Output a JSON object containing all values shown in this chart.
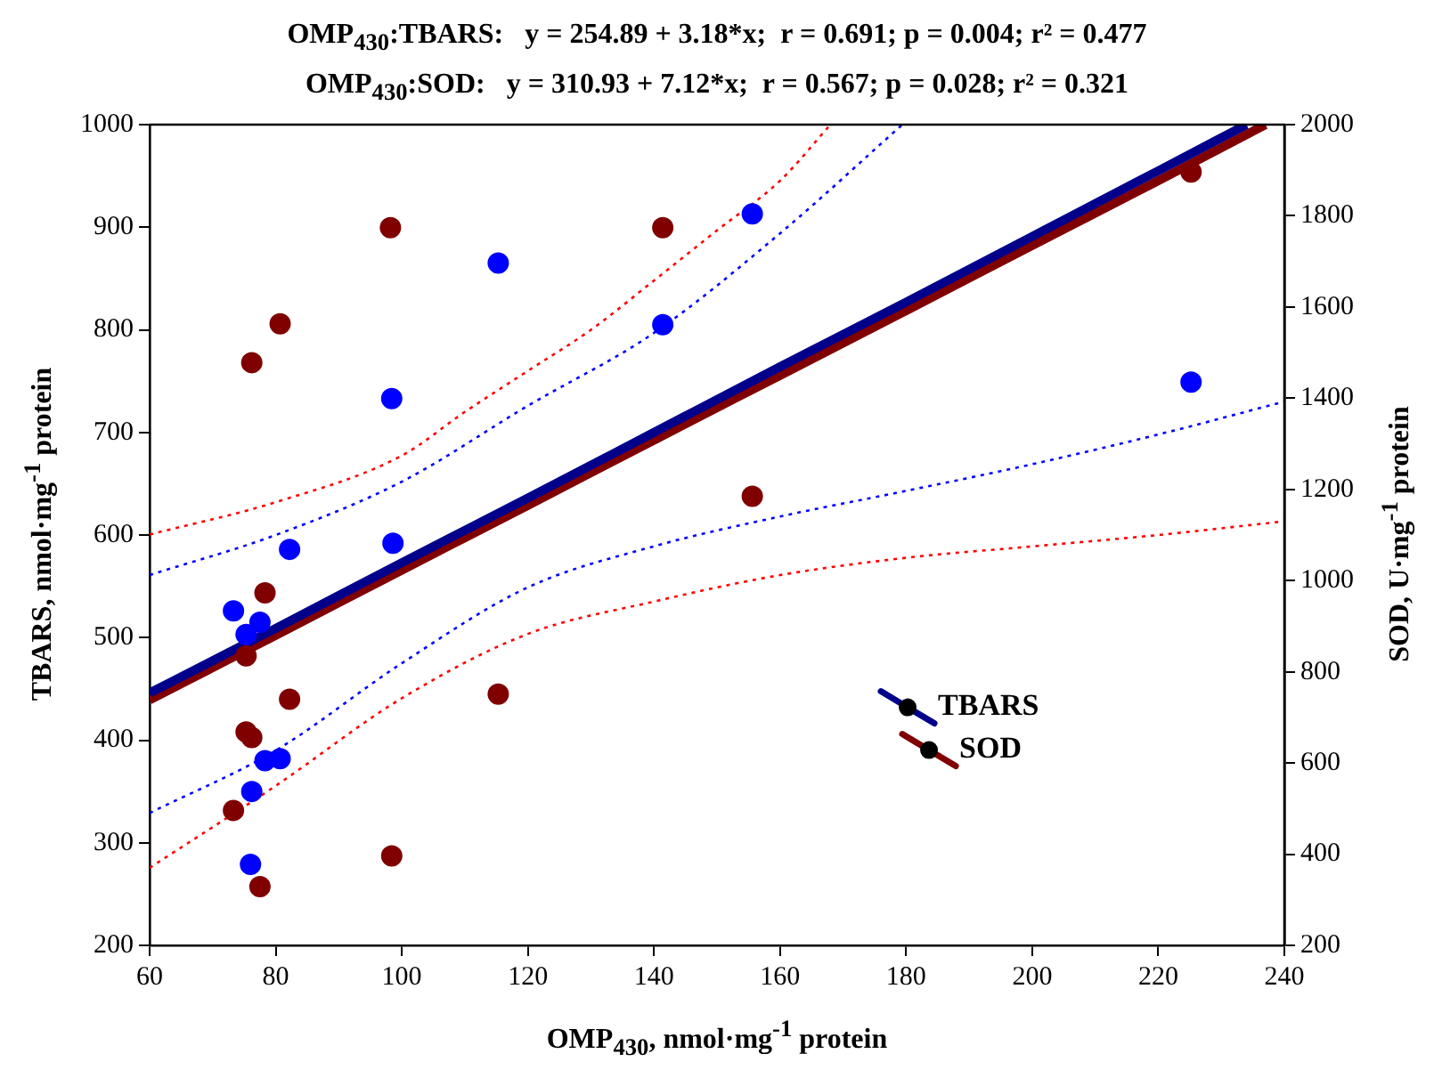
{
  "chart_data": {
    "type": "scatter",
    "title": "OMP$_{430}$:TBARS:   y = 254.89 + 3.18*x;  r = 0.691; p = 0.004; r² = 0.477",
    "subtitle": "OMP$_{430}$:SOD:   y = 310.93 + 7.12*x;  r = 0.567; p = 0.028; r² = 0.321",
    "xlabel": "OMP$_{430}$, nmol·mg$^{-1}$ protein",
    "ylabel": "TBARS, nmol·mg$^{-1}$ protein",
    "y2label": "SOD, U·mg$^{-1}$ protein",
    "xlim": [
      60,
      240
    ],
    "xticks": [
      60,
      80,
      100,
      120,
      140,
      160,
      180,
      200,
      220,
      240
    ],
    "ylim": [
      200,
      1000
    ],
    "yticks": [
      200,
      300,
      400,
      500,
      600,
      700,
      800,
      900,
      1000
    ],
    "y2lim": [
      200,
      2000
    ],
    "y2ticks": [
      200,
      400,
      600,
      800,
      1000,
      1200,
      1400,
      1600,
      1800,
      2000
    ],
    "grid": false,
    "legend": "bottom right",
    "marker": "circle",
    "series": [
      {
        "type": "scatter",
        "color": "#0000ff",
        "x": [
          73.3,
          75.3,
          77.5,
          82.2,
          98.4,
          98.6,
          78.3,
          80.7,
          76.2,
          76.0,
          115.3,
          155.6,
          141.4,
          225.2
        ],
        "values": [
          526,
          503,
          515,
          586,
          733,
          592,
          380,
          382,
          350,
          279,
          865,
          913,
          805,
          749
        ]
      },
      {
        "type": "scatter",
        "color": "#800000",
        "axis": "y2",
        "x": [
          98.2,
          80.7,
          76.2,
          78.3,
          75.3,
          82.2,
          75.3,
          76.2,
          73.3,
          98.4,
          77.5,
          115.3,
          141.4,
          155.6,
          225.2
        ],
        "values": [
          1774,
          1563,
          1478,
          973,
          835,
          740,
          668,
          656,
          496,
          396,
          329,
          751,
          1774,
          1185,
          1896
        ]
      },
      {
        "type": "line",
        "name": "TBARS",
        "color": "#00008b",
        "marker": "none",
        "x": [
          60,
          80,
          100,
          120,
          140,
          160,
          180,
          200,
          220,
          234
        ],
        "values": [
          446,
          509,
          573,
          636,
          700,
          764,
          827,
          891,
          955,
          1000
        ]
      },
      {
        "type": "line",
        "name": "SOD",
        "color": "#800000",
        "marker": "none",
        "axis": "y2",
        "x": [
          60,
          80,
          100,
          120,
          140,
          160,
          180,
          200,
          220,
          237
        ],
        "values": [
          738,
          880,
          1023,
          1165,
          1308,
          1450,
          1592,
          1735,
          1877,
          2000
        ]
      },
      {
        "type": "line",
        "color": "#0000ff",
        "line_style": "dotted",
        "marker": "none",
        "x": [
          60,
          80,
          100,
          120,
          140,
          160,
          180,
          200,
          220,
          240
        ],
        "values": [
          329,
          390,
          475,
          549,
          589,
          618,
          643,
          669,
          698,
          730
        ]
      },
      {
        "type": "line",
        "color": "#0000ff",
        "line_style": "dotted",
        "marker": "none",
        "x": [
          60,
          80,
          100,
          120,
          140,
          160,
          179.4
        ],
        "values": [
          561,
          600,
          652,
          726,
          797,
          894,
          1000
        ]
      },
      {
        "type": "line",
        "color": "#ff0000",
        "line_style": "dotted",
        "marker": "none",
        "axis": "y2",
        "x": [
          60,
          80,
          100,
          120,
          140,
          160,
          180,
          200,
          220,
          240
        ],
        "values": [
          370,
          550,
          742,
          883,
          954,
          1012,
          1050,
          1075,
          1100,
          1130
        ]
      },
      {
        "type": "line",
        "color": "#ff0000",
        "line_style": "dotted",
        "marker": "none",
        "axis": "y2",
        "x": [
          60,
          80,
          100,
          110,
          120,
          130,
          140,
          150,
          160,
          168
        ],
        "values": [
          1101,
          1172,
          1274,
          1370,
          1460,
          1550,
          1658,
          1768,
          1877,
          2000
        ]
      }
    ]
  }
}
